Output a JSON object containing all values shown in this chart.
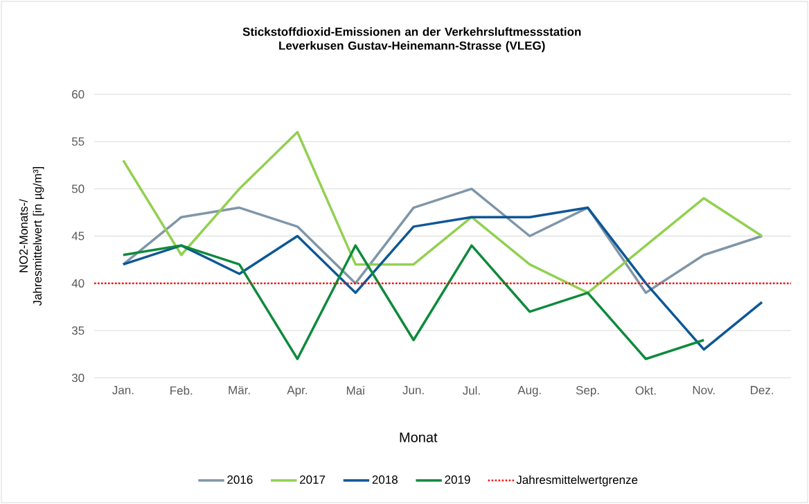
{
  "chart_data": {
    "type": "line",
    "title": "Stickstoffdioxid-Emissionen an der Verkehrsluftmessstation Leverkusen Gustav-Heinemann-Strasse (VLEG)",
    "xlabel": "Monat",
    "ylabel": "NO2-Monats-/ Jahresmittelwert [in µg/m³]",
    "categories": [
      "Jan.",
      "Feb.",
      "Mär.",
      "Apr.",
      "Mai",
      "Jun.",
      "Jul.",
      "Aug.",
      "Sep.",
      "Okt.",
      "Nov.",
      "Dez."
    ],
    "series": [
      {
        "name": "2016",
        "color": "#7f96a8",
        "values": [
          42,
          47,
          48,
          46,
          40,
          48,
          50,
          45,
          48,
          39,
          43,
          45
        ]
      },
      {
        "name": "2017",
        "color": "#92d050",
        "values": [
          53,
          43,
          50,
          56,
          42,
          42,
          47,
          42,
          39,
          44,
          49,
          45
        ]
      },
      {
        "name": "2018",
        "color": "#0d5796",
        "values": [
          42,
          44,
          41,
          45,
          39,
          46,
          47,
          47,
          48,
          40,
          33,
          38
        ]
      },
      {
        "name": "2019",
        "color": "#0e8a3c",
        "values": [
          43,
          44,
          42,
          32,
          44,
          34,
          44,
          37,
          39,
          32,
          34,
          null
        ]
      }
    ],
    "ref_lines": [
      {
        "axis": "y",
        "value": 40,
        "label": "Jahresmittelwertgrenze",
        "color": "#ff0000",
        "line_style": "dotted"
      }
    ],
    "ylim": [
      30,
      60
    ],
    "yticks": [
      30,
      35,
      40,
      45,
      50,
      55,
      60
    ],
    "grid": "y",
    "legend": "bottom"
  }
}
